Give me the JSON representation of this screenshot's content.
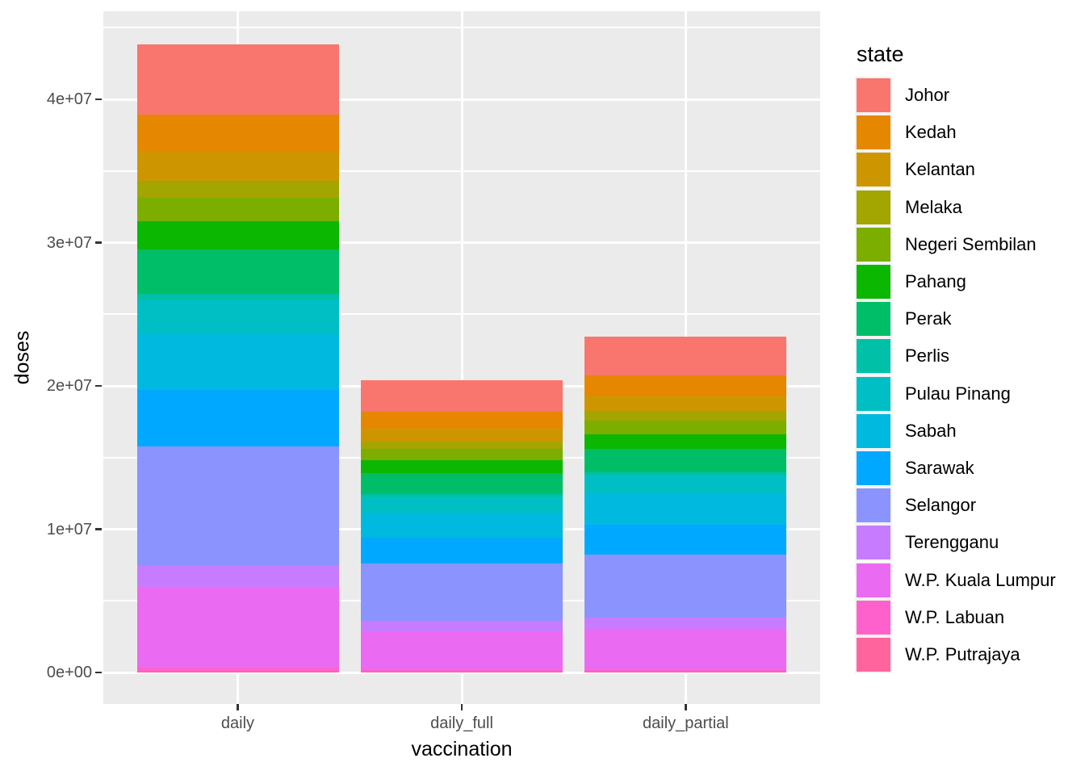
{
  "figure": {
    "background": "#FFFFFF",
    "panel_background": "#EBEBEB",
    "gridline_color": "#FFFFFF",
    "axis_text_color": "#4D4D4D",
    "axis_title_color": "#000000",
    "tick_mark_color": "#333333"
  },
  "axes": {
    "x": {
      "title": "vaccination"
    },
    "y": {
      "title": "doses"
    }
  },
  "legend": {
    "title": "state",
    "position": "right"
  },
  "chart_data": {
    "type": "bar",
    "stacked": true,
    "title": "",
    "xlabel": "vaccination",
    "ylabel": "doses",
    "categories": [
      "daily",
      "daily_full",
      "daily_partial"
    ],
    "y_tick_labels": [
      "0e+00",
      "1e+07",
      "2e+07",
      "3e+07",
      "4e+07"
    ],
    "y_tick_values": [
      0,
      10000000,
      20000000,
      30000000,
      40000000
    ],
    "y_minor_tick_values": [
      5000000,
      15000000,
      25000000,
      35000000,
      45000000
    ],
    "ylim": [
      -2200000,
      46100000
    ],
    "grid": true,
    "legend_position": "right",
    "legend_title": "state",
    "stack_order_top_to_bottom": [
      "Johor",
      "Kedah",
      "Kelantan",
      "Melaka",
      "Negeri Sembilan",
      "Pahang",
      "Perak",
      "Perlis",
      "Pulau Pinang",
      "Sabah",
      "Sarawak",
      "Selangor",
      "Terengganu",
      "W.P. Kuala Lumpur",
      "W.P. Labuan",
      "W.P. Putrajaya"
    ],
    "series": [
      {
        "name": "Johor",
        "color": "#F8766D",
        "values": [
          4860000,
          2200000,
          2660000
        ]
      },
      {
        "name": "Kedah",
        "color": "#E58700",
        "values": [
          2580000,
          1160000,
          1420000
        ]
      },
      {
        "name": "Kelantan",
        "color": "#CD9600",
        "values": [
          2040000,
          940000,
          1100000
        ]
      },
      {
        "name": "Melaka",
        "color": "#A3A500",
        "values": [
          1180000,
          520000,
          660000
        ]
      },
      {
        "name": "Negeri Sembilan",
        "color": "#7CAE00",
        "values": [
          1680000,
          740000,
          940000
        ]
      },
      {
        "name": "Pahang",
        "color": "#0CB702",
        "values": [
          1960000,
          940000,
          1020000
        ]
      },
      {
        "name": "Perak",
        "color": "#00BE67",
        "values": [
          3110000,
          1470000,
          1640000
        ]
      },
      {
        "name": "Perlis",
        "color": "#00C0A8",
        "values": [
          380000,
          180000,
          200000
        ]
      },
      {
        "name": "Pulau Pinang",
        "color": "#00BFC4",
        "values": [
          2440000,
          1100000,
          1340000
        ]
      },
      {
        "name": "Sabah",
        "color": "#00B9DF",
        "values": [
          3880000,
          1760000,
          2120000
        ]
      },
      {
        "name": "Sarawak",
        "color": "#00A9FF",
        "values": [
          3900000,
          1800000,
          2100000
        ]
      },
      {
        "name": "Selangor",
        "color": "#8B93FF",
        "values": [
          8380000,
          4000000,
          4380000
        ]
      },
      {
        "name": "Terengganu",
        "color": "#C77CFF",
        "values": [
          1500000,
          690000,
          810000
        ]
      },
      {
        "name": "W.P. Kuala Lumpur",
        "color": "#EA6AF1",
        "values": [
          5580000,
          2740000,
          2840000
        ]
      },
      {
        "name": "W.P. Labuan",
        "color": "#FF61CC",
        "values": [
          210000,
          100000,
          110000
        ]
      },
      {
        "name": "W.P. Putrajaya",
        "color": "#FF659C",
        "values": [
          130000,
          60000,
          70000
        ]
      }
    ],
    "stack_totals": [
      43810000,
      20400000,
      23410000
    ]
  }
}
